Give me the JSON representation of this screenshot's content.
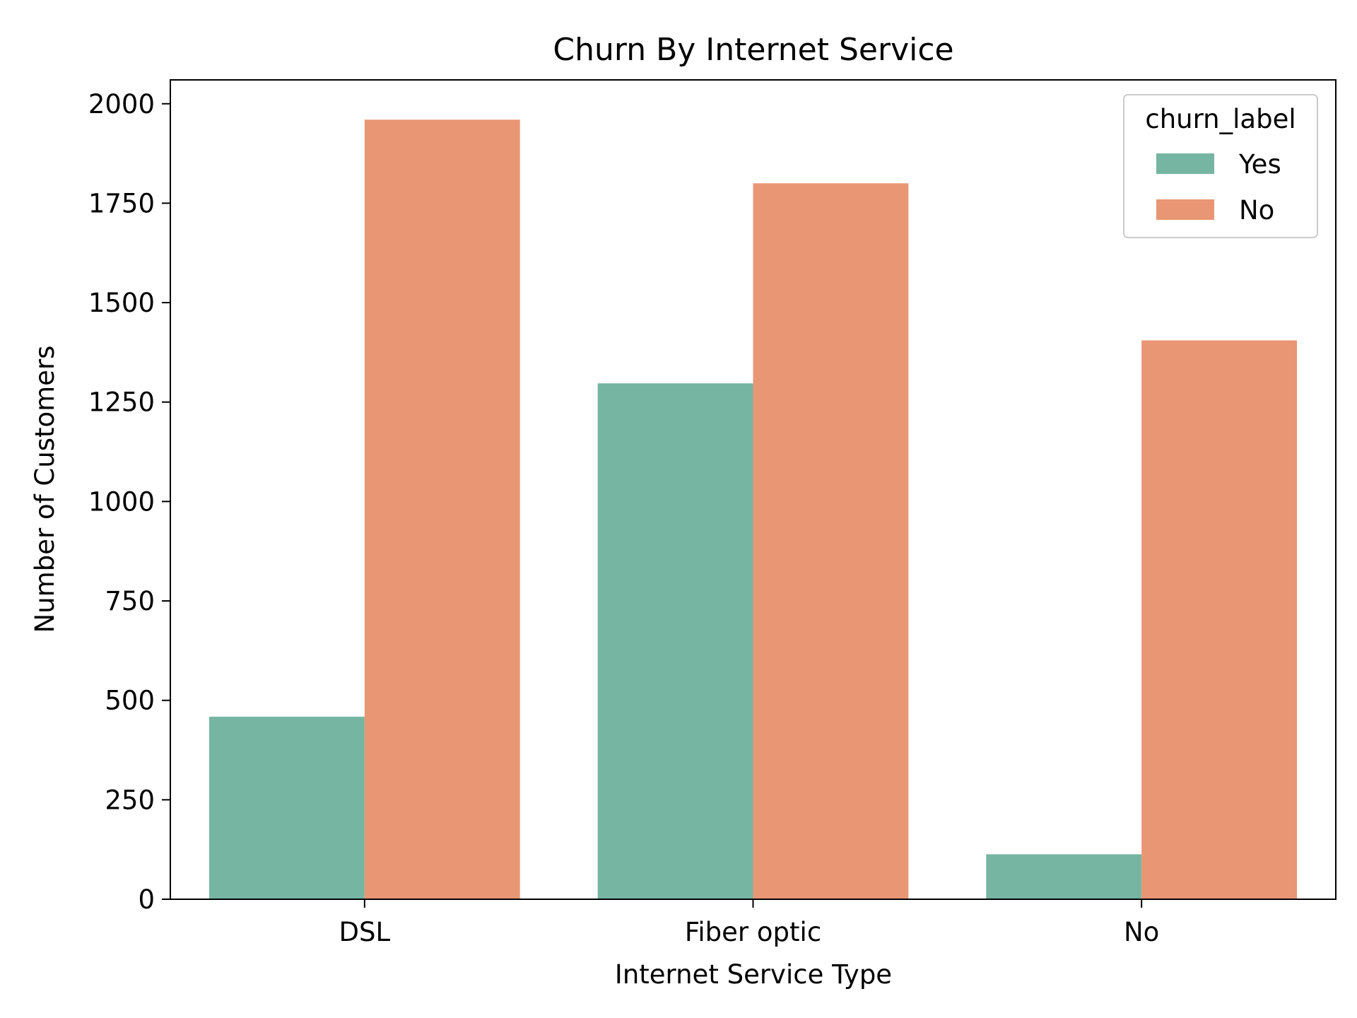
{
  "chart_data": {
    "type": "bar",
    "title": "Churn By Internet Service",
    "xlabel": "Internet Service Type",
    "ylabel": "Number of Customers",
    "categories": [
      "DSL",
      "Fiber optic",
      "No"
    ],
    "series": [
      {
        "name": "Yes",
        "values": [
          459,
          1297,
          113
        ],
        "color": "#76b5a1"
      },
      {
        "name": "No",
        "values": [
          1960,
          1800,
          1405
        ],
        "color": "#e99675"
      }
    ],
    "ylim": [
      0,
      2060
    ],
    "yticks": [
      0,
      250,
      500,
      750,
      1000,
      1250,
      1500,
      1750,
      2000
    ],
    "legend": {
      "title": "churn_label",
      "placement": "top-right"
    },
    "grid": false
  }
}
